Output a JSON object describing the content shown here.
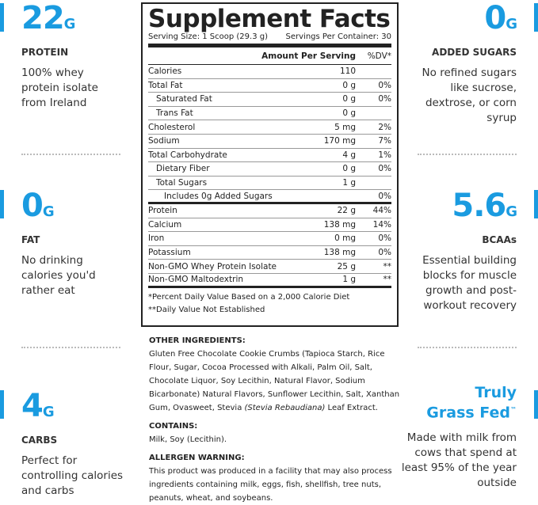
{
  "accent_color": "#1a9be0",
  "left": [
    {
      "value": "22",
      "unit": "G",
      "label": "PROTEIN",
      "desc": "100% whey protein isolate from Ireland"
    },
    {
      "value": "0",
      "unit": "G",
      "label": "FAT",
      "desc": "No drinking calories you'd rather eat"
    },
    {
      "value": "4",
      "unit": "G",
      "label": "CARBS",
      "desc": "Perfect for controlling calories and carbs"
    }
  ],
  "right": [
    {
      "value": "0",
      "unit": "G",
      "label": "ADDED SUGARS",
      "desc": "No refined sugars like sucrose, dextrose, or corn syrup"
    },
    {
      "value": "5.6",
      "unit": "G",
      "label": "BCAAs",
      "desc": "Essential building blocks for muscle growth and post-workout recovery"
    },
    {
      "line1": "Truly",
      "line2": "Grass Fed",
      "tm": "™",
      "desc": "Made with milk from cows that spend at least 95% of the year outside"
    }
  ],
  "facts": {
    "title": "Supplement Facts",
    "serving_size": "Serving Size: 1 Scoop (29.3 g)",
    "servings": "Servings Per Container: 30",
    "header_amount": "Amount Per Serving",
    "header_dv": "%DV*",
    "rows": [
      {
        "name": "Calories",
        "amount": "110",
        "dv": ""
      },
      {
        "name": "Total Fat",
        "amount": "0 g",
        "dv": "0%"
      },
      {
        "name": "Saturated Fat",
        "amount": "0 g",
        "dv": "0%"
      },
      {
        "name": "Trans Fat",
        "amount": "0 g",
        "dv": ""
      },
      {
        "name": "Cholesterol",
        "amount": "5 mg",
        "dv": "2%"
      },
      {
        "name": "Sodium",
        "amount": "170 mg",
        "dv": "7%"
      },
      {
        "name": "Total Carbohydrate",
        "amount": "4 g",
        "dv": "1%"
      },
      {
        "name": "Dietary Fiber",
        "amount": "0 g",
        "dv": "0%"
      },
      {
        "name": "Total Sugars",
        "amount": "1 g",
        "dv": ""
      },
      {
        "name": "Includes 0g Added Sugars",
        "amount": "",
        "dv": "0%"
      },
      {
        "name": "Protein",
        "amount": "22 g",
        "dv": "44%"
      },
      {
        "name": "Calcium",
        "amount": "138 mg",
        "dv": "14%"
      },
      {
        "name": "Iron",
        "amount": "0 mg",
        "dv": "0%"
      },
      {
        "name": "Potassium",
        "amount": "138 mg",
        "dv": "0%"
      },
      {
        "name": "Non-GMO Whey Protein Isolate",
        "amount": "25 g",
        "dv": "**"
      },
      {
        "name": "Non-GMO Maltodextrin",
        "amount": "1 g",
        "dv": "**"
      }
    ],
    "foot1": "*Percent Daily Value Based on a 2,000 Calorie Diet",
    "foot2": "**Daily Value Not Established"
  },
  "ingredients": {
    "other_title": "OTHER INGREDIENTS:",
    "other_text": "Gluten Free Chocolate Cookie Crumbs (Tapioca Starch, Rice Flour, Sugar, Cocoa Processed with Alkali, Palm Oil, Salt, Chocolate Liquor, Soy Lecithin, Natural Flavor, Sodium Bicarbonate) Natural Flavors, Sunflower Lecithin, Salt, Xanthan Gum, Ovasweet, Stevia ",
    "other_italic": "(Stevia Rebaudiana)",
    "other_end": " Leaf Extract.",
    "contains_title": "CONTAINS:",
    "contains_text": "Milk, Soy (Lecithin).",
    "allergen_title": "ALLERGEN WARNING:",
    "allergen_text": "This product was produced in a facility that may also process ingredients containing milk, eggs, fish, shellfish, tree nuts, peanuts, wheat, and soybeans."
  }
}
